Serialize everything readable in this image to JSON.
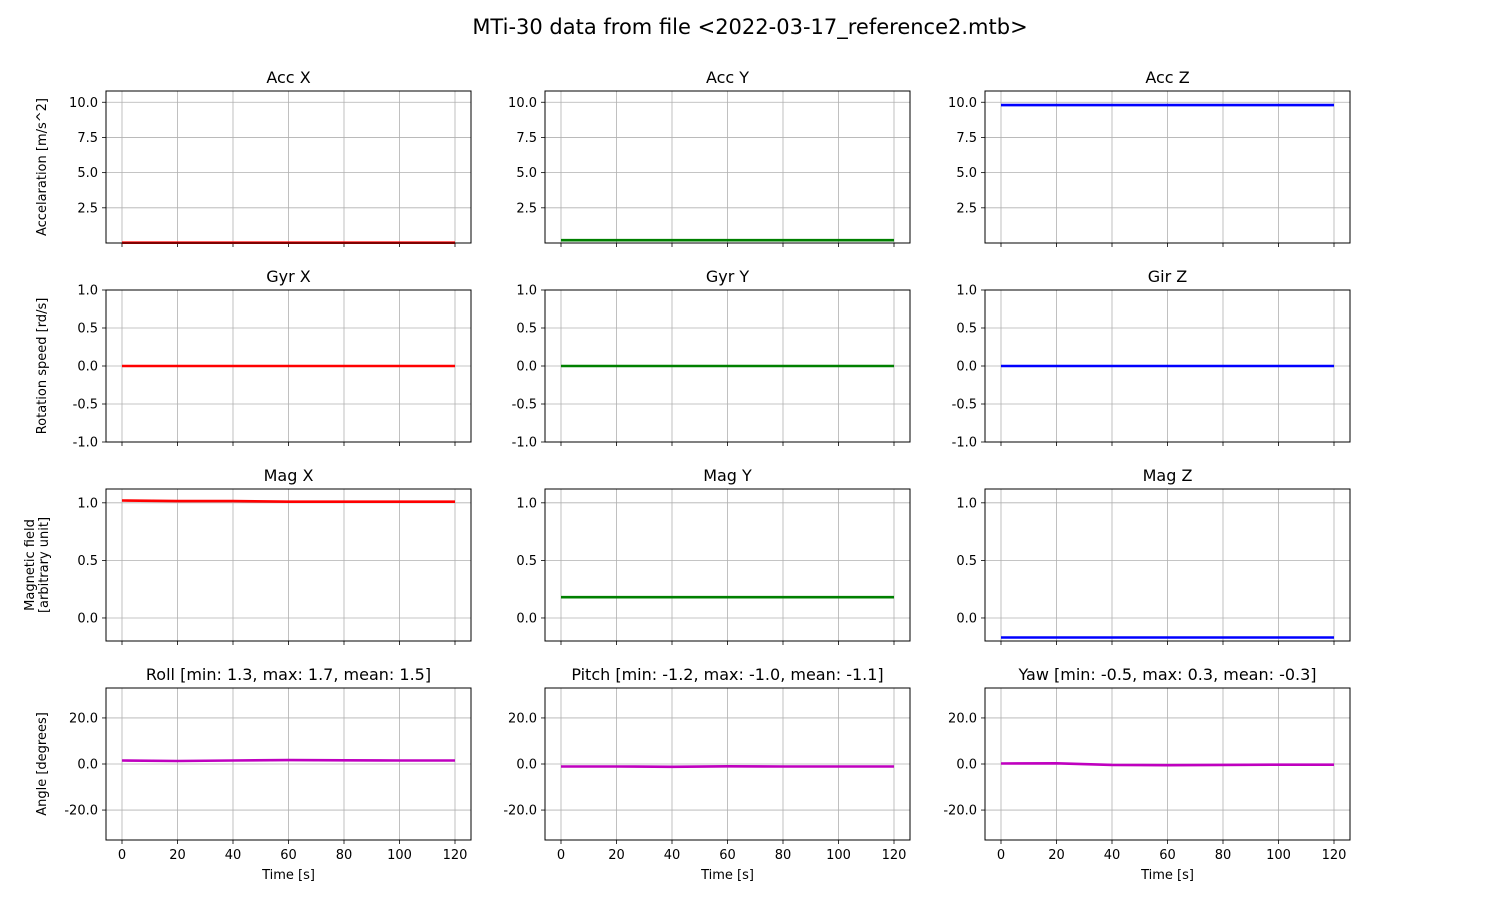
{
  "chart_data": {
    "title": "MTi-30 data from file <2022-03-17_reference2.mtb>",
    "type": "line",
    "x_range": [
      0,
      120
    ],
    "x_ticks": [
      "0",
      "20",
      "40",
      "60",
      "80",
      "100",
      "120"
    ],
    "xlabel": "Time [s]",
    "grid": true,
    "rows": [
      {
        "ylabel": [
          "Accelaration [m/s^2]"
        ],
        "ylim": [
          0.0,
          10.8
        ],
        "y_ticks": [
          2.5,
          5.0,
          7.5,
          10.0
        ],
        "y_tick_labels": [
          "2.5",
          "5.0",
          "7.5",
          "10.0"
        ],
        "panels": [
          {
            "title": "Acc X",
            "color": "#ff0000",
            "values": [
              0.02,
              0.02,
              0.02,
              0.02,
              0.02,
              0.02,
              0.02
            ]
          },
          {
            "title": "Acc Y",
            "color": "#008000",
            "values": [
              0.2,
              0.2,
              0.2,
              0.2,
              0.2,
              0.2,
              0.2
            ]
          },
          {
            "title": "Acc Z",
            "color": "#0000ff",
            "values": [
              9.8,
              9.8,
              9.8,
              9.8,
              9.8,
              9.8,
              9.8
            ]
          }
        ]
      },
      {
        "ylabel": [
          "Rotation speed [rd/s]"
        ],
        "ylim": [
          -1.0,
          1.0
        ],
        "y_ticks": [
          -1.0,
          -0.5,
          0.0,
          0.5,
          1.0
        ],
        "y_tick_labels": [
          "-1.0",
          "-0.5",
          "0.0",
          "0.5",
          "1.0"
        ],
        "panels": [
          {
            "title": "Gyr X",
            "color": "#ff0000",
            "values": [
              0.0,
              0.0,
              0.0,
              0.0,
              0.0,
              0.0,
              0.0
            ]
          },
          {
            "title": "Gyr Y",
            "color": "#008000",
            "values": [
              0.0,
              0.0,
              0.0,
              0.0,
              0.0,
              0.0,
              0.0
            ]
          },
          {
            "title": "Gir Z",
            "color": "#0000ff",
            "values": [
              0.0,
              0.0,
              0.0,
              0.0,
              0.0,
              0.0,
              0.0
            ]
          }
        ]
      },
      {
        "ylabel": [
          "Magnetic field",
          "[arbitrary unit]"
        ],
        "ylim": [
          -0.2,
          1.12
        ],
        "y_ticks": [
          0.0,
          0.5,
          1.0
        ],
        "y_tick_labels": [
          "0.0",
          "0.5",
          "1.0"
        ],
        "panels": [
          {
            "title": "Mag X",
            "color": "#ff0000",
            "values": [
              1.02,
              1.015,
              1.015,
              1.01,
              1.01,
              1.01,
              1.01
            ]
          },
          {
            "title": "Mag Y",
            "color": "#008000",
            "values": [
              0.18,
              0.18,
              0.18,
              0.18,
              0.18,
              0.18,
              0.18
            ]
          },
          {
            "title": "Mag Z",
            "color": "#0000ff",
            "values": [
              -0.17,
              -0.17,
              -0.17,
              -0.17,
              -0.17,
              -0.17,
              -0.17
            ]
          }
        ]
      },
      {
        "ylabel": [
          "Angle [degrees]"
        ],
        "ylim": [
          -33,
          33
        ],
        "y_ticks": [
          -20,
          0,
          20
        ],
        "y_tick_labels": [
          "-20.0",
          "0.0",
          "20.0"
        ],
        "panels": [
          {
            "title": "Roll [min: 1.3, max: 1.7, mean: 1.5]",
            "color": "#bf00bf",
            "values": [
              1.5,
              1.3,
              1.5,
              1.7,
              1.6,
              1.5,
              1.5
            ]
          },
          {
            "title": "Pitch [min: -1.2, max: -1.0, mean: -1.1]",
            "color": "#bf00bf",
            "values": [
              -1.1,
              -1.1,
              -1.2,
              -1.0,
              -1.1,
              -1.1,
              -1.1
            ]
          },
          {
            "title": "Yaw [min: -0.5, max: 0.3, mean: -0.3]",
            "color": "#bf00bf",
            "values": [
              0.2,
              0.3,
              -0.4,
              -0.5,
              -0.4,
              -0.3,
              -0.3
            ]
          }
        ]
      }
    ]
  }
}
